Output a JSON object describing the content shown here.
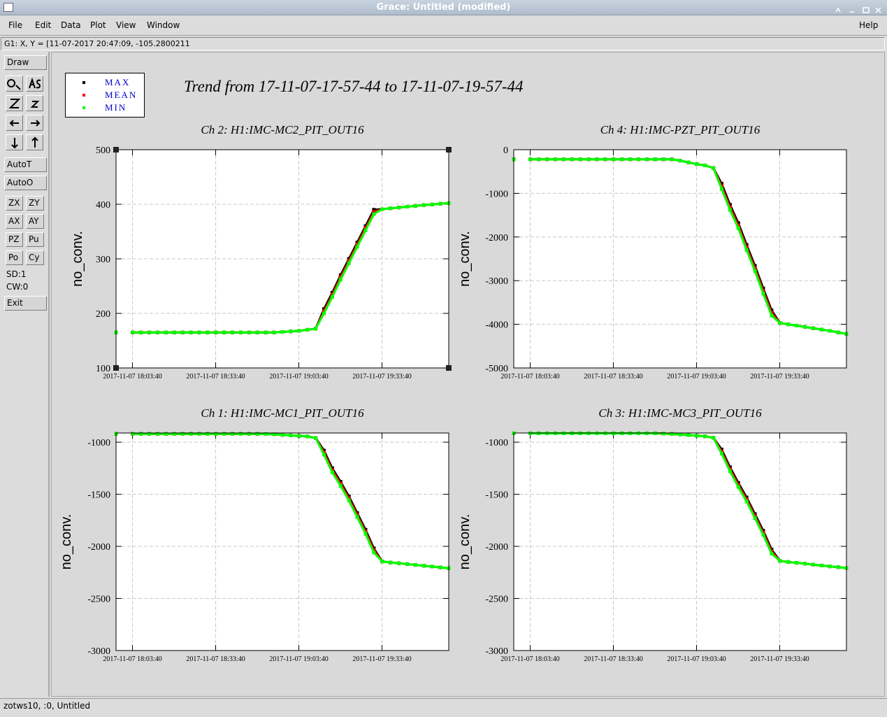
{
  "window": {
    "title": "Grace: Untitled (modified)"
  },
  "menu": {
    "items": [
      "File",
      "Edit",
      "Data",
      "Plot",
      "View",
      "Window"
    ],
    "help": "Help"
  },
  "status": "G1: X, Y = [11-07-2017 20:47:09, -105.2800211",
  "toolbar": {
    "draw": "Draw",
    "auto": [
      "AutoT",
      "AutoO"
    ],
    "buttons": [
      "ZX",
      "ZY",
      "AX",
      "AY",
      "PZ",
      "Pu",
      "Po",
      "Cy"
    ],
    "info": [
      "SD:1",
      "CW:0"
    ],
    "exit": "Exit"
  },
  "footer": "zotws10, :0, Untitled",
  "figure": {
    "title": "Trend from 17-11-07-17-57-44 to 17-11-07-19-57-44",
    "legend": [
      {
        "name": "MAX",
        "color": "#000000"
      },
      {
        "name": "MEAN",
        "color": "#ff0000"
      },
      {
        "name": "MIN",
        "color": "#00ff00"
      }
    ]
  },
  "chart_data": [
    {
      "type": "scatter",
      "title": "Ch 2: H1:IMC-MC2_PIT_OUT16",
      "y_label": "no_conv.",
      "x": [
        "2017-11-07 17:57:44",
        "2017-11-07 18:00:44",
        "2017-11-07 18:03:44",
        "2017-11-07 18:06:44",
        "2017-11-07 18:09:44",
        "2017-11-07 18:12:44",
        "2017-11-07 18:15:44",
        "2017-11-07 18:18:44",
        "2017-11-07 18:21:44",
        "2017-11-07 18:24:44",
        "2017-11-07 18:27:44",
        "2017-11-07 18:30:44",
        "2017-11-07 18:33:44",
        "2017-11-07 18:36:44",
        "2017-11-07 18:39:44",
        "2017-11-07 18:42:44",
        "2017-11-07 18:45:44",
        "2017-11-07 18:48:44",
        "2017-11-07 18:51:44",
        "2017-11-07 18:54:44",
        "2017-11-07 18:57:44",
        "2017-11-07 19:00:44",
        "2017-11-07 19:03:44",
        "2017-11-07 19:06:44",
        "2017-11-07 19:09:44",
        "2017-11-07 19:12:44",
        "2017-11-07 19:15:44",
        "2017-11-07 19:18:44",
        "2017-11-07 19:21:44",
        "2017-11-07 19:24:44",
        "2017-11-07 19:27:44",
        "2017-11-07 19:30:44",
        "2017-11-07 19:33:44",
        "2017-11-07 19:36:44",
        "2017-11-07 19:39:44",
        "2017-11-07 19:42:44",
        "2017-11-07 19:45:44",
        "2017-11-07 19:48:44",
        "2017-11-07 19:51:44",
        "2017-11-07 19:54:44",
        "2017-11-07 19:57:44"
      ],
      "xlim": [
        "2017-11-07 17:57:44",
        "2017-11-07 19:57:44"
      ],
      "xticks": [
        "2017-11-07 18:03:40",
        "2017-11-07 18:33:40",
        "2017-11-07 19:03:40",
        "2017-11-07 19:33:40"
      ],
      "ylim": [
        100,
        500
      ],
      "yticks": [
        100,
        200,
        300,
        400,
        500
      ],
      "grid": true,
      "series": [
        {
          "values": [
            165,
            null,
            165,
            165,
            165,
            165,
            165,
            165,
            165,
            165,
            165,
            165,
            165,
            165,
            165,
            165,
            165,
            165,
            165,
            165,
            166,
            167,
            168,
            170,
            172,
            208,
            238,
            270,
            300,
            330,
            360,
            390,
            391,
            392.5,
            394,
            395.5,
            397,
            398.5,
            399.5,
            401,
            402
          ]
        },
        {
          "values": [
            165,
            null,
            165,
            165,
            165,
            165,
            165,
            165,
            165,
            165,
            165,
            165,
            165,
            165,
            165,
            165,
            165,
            165,
            165,
            165,
            166,
            167,
            168,
            170,
            172,
            204,
            234,
            266,
            296,
            326,
            356,
            386,
            391,
            392.5,
            394,
            395.5,
            397,
            398.5,
            399.5,
            401,
            402
          ]
        },
        {
          "values": [
            165,
            null,
            165,
            165,
            165,
            165,
            165,
            165,
            165,
            165,
            165,
            165,
            165,
            165,
            165,
            165,
            165,
            165,
            165,
            165,
            166,
            167,
            168,
            170,
            172,
            200,
            230,
            262,
            292,
            322,
            352,
            382,
            391,
            392.5,
            394,
            395.5,
            397,
            398.5,
            399.5,
            401,
            402
          ]
        }
      ]
    },
    {
      "type": "scatter",
      "title": "Ch 4: H1:IMC-PZT_PIT_OUT16",
      "y_label": "no_conv.",
      "x": [
        "2017-11-07 17:57:44",
        "2017-11-07 18:00:44",
        "2017-11-07 18:03:44",
        "2017-11-07 18:06:44",
        "2017-11-07 18:09:44",
        "2017-11-07 18:12:44",
        "2017-11-07 18:15:44",
        "2017-11-07 18:18:44",
        "2017-11-07 18:21:44",
        "2017-11-07 18:24:44",
        "2017-11-07 18:27:44",
        "2017-11-07 18:30:44",
        "2017-11-07 18:33:44",
        "2017-11-07 18:36:44",
        "2017-11-07 18:39:44",
        "2017-11-07 18:42:44",
        "2017-11-07 18:45:44",
        "2017-11-07 18:48:44",
        "2017-11-07 18:51:44",
        "2017-11-07 18:54:44",
        "2017-11-07 18:57:44",
        "2017-11-07 19:00:44",
        "2017-11-07 19:03:44",
        "2017-11-07 19:06:44",
        "2017-11-07 19:09:44",
        "2017-11-07 19:12:44",
        "2017-11-07 19:15:44",
        "2017-11-07 19:18:44",
        "2017-11-07 19:21:44",
        "2017-11-07 19:24:44",
        "2017-11-07 19:27:44",
        "2017-11-07 19:30:44",
        "2017-11-07 19:33:44",
        "2017-11-07 19:36:44",
        "2017-11-07 19:39:44",
        "2017-11-07 19:42:44",
        "2017-11-07 19:45:44",
        "2017-11-07 19:48:44",
        "2017-11-07 19:51:44",
        "2017-11-07 19:54:44",
        "2017-11-07 19:57:44"
      ],
      "xlim": [
        "2017-11-07 17:57:44",
        "2017-11-07 19:57:44"
      ],
      "xticks": [
        "2017-11-07 18:03:40",
        "2017-11-07 18:33:40",
        "2017-11-07 19:03:40",
        "2017-11-07 19:33:40"
      ],
      "ylim": [
        -5000,
        0
      ],
      "yticks": [
        -5000,
        -4000,
        -3000,
        -2000,
        -1000,
        0
      ],
      "grid": true,
      "series": [
        {
          "values": [
            -220,
            null,
            -220,
            -220,
            -220,
            -220,
            -220,
            -220,
            -220,
            -220,
            -220,
            -220,
            -220,
            -220,
            -220,
            -220,
            -220,
            -220,
            -220,
            -220,
            -250,
            -290,
            -330,
            -360,
            -420,
            -780,
            -1260,
            -1680,
            -2180,
            -2660,
            -3180,
            -3680,
            -3970,
            -4000,
            -4030,
            -4060,
            -4090,
            -4120,
            -4150,
            -4185,
            -4220
          ]
        },
        {
          "values": [
            -220,
            null,
            -220,
            -220,
            -220,
            -220,
            -220,
            -220,
            -220,
            -220,
            -220,
            -220,
            -220,
            -220,
            -220,
            -220,
            -220,
            -220,
            -220,
            -220,
            -250,
            -290,
            -330,
            -360,
            -420,
            -840,
            -1320,
            -1740,
            -2240,
            -2720,
            -3240,
            -3740,
            -3970,
            -4000,
            -4030,
            -4060,
            -4090,
            -4120,
            -4150,
            -4185,
            -4220
          ]
        },
        {
          "values": [
            -220,
            null,
            -220,
            -220,
            -220,
            -220,
            -220,
            -220,
            -220,
            -220,
            -220,
            -220,
            -220,
            -220,
            -220,
            -220,
            -220,
            -220,
            -220,
            -220,
            -250,
            -290,
            -330,
            -360,
            -420,
            -900,
            -1380,
            -1800,
            -2300,
            -2780,
            -3300,
            -3800,
            -3970,
            -4000,
            -4030,
            -4060,
            -4090,
            -4120,
            -4150,
            -4185,
            -4220
          ]
        }
      ]
    },
    {
      "type": "scatter",
      "title": "Ch 1: H1:IMC-MC1_PIT_OUT16",
      "y_label": "no_conv.",
      "x": [
        "2017-11-07 17:57:44",
        "2017-11-07 18:00:44",
        "2017-11-07 18:03:44",
        "2017-11-07 18:06:44",
        "2017-11-07 18:09:44",
        "2017-11-07 18:12:44",
        "2017-11-07 18:15:44",
        "2017-11-07 18:18:44",
        "2017-11-07 18:21:44",
        "2017-11-07 18:24:44",
        "2017-11-07 18:27:44",
        "2017-11-07 18:30:44",
        "2017-11-07 18:33:44",
        "2017-11-07 18:36:44",
        "2017-11-07 18:39:44",
        "2017-11-07 18:42:44",
        "2017-11-07 18:45:44",
        "2017-11-07 18:48:44",
        "2017-11-07 18:51:44",
        "2017-11-07 18:54:44",
        "2017-11-07 18:57:44",
        "2017-11-07 19:00:44",
        "2017-11-07 19:03:44",
        "2017-11-07 19:06:44",
        "2017-11-07 19:09:44",
        "2017-11-07 19:12:44",
        "2017-11-07 19:15:44",
        "2017-11-07 19:18:44",
        "2017-11-07 19:21:44",
        "2017-11-07 19:24:44",
        "2017-11-07 19:27:44",
        "2017-11-07 19:30:44",
        "2017-11-07 19:33:44",
        "2017-11-07 19:36:44",
        "2017-11-07 19:39:44",
        "2017-11-07 19:42:44",
        "2017-11-07 19:45:44",
        "2017-11-07 19:48:44",
        "2017-11-07 19:51:44",
        "2017-11-07 19:54:44",
        "2017-11-07 19:57:44"
      ],
      "xlim": [
        "2017-11-07 17:57:44",
        "2017-11-07 19:57:44"
      ],
      "xticks": [
        "2017-11-07 18:03:40",
        "2017-11-07 18:33:40",
        "2017-11-07 19:03:40",
        "2017-11-07 19:33:40"
      ],
      "ylim": [
        -3000,
        -912
      ],
      "yticks": [
        -3000,
        -2500,
        -2000,
        -1500,
        -1000
      ],
      "grid": true,
      "series": [
        {
          "values": [
            -920,
            null,
            -920,
            -920,
            -920,
            -920,
            -920,
            -920,
            -920,
            -920,
            -920,
            -920,
            -920,
            -920,
            -920,
            -920,
            -920,
            -920,
            -922,
            -925,
            -930,
            -935,
            -940,
            -945,
            -960,
            -1080,
            -1250,
            -1380,
            -1520,
            -1680,
            -1840,
            -2020,
            -2145,
            -2155,
            -2162,
            -2170,
            -2178,
            -2186,
            -2194,
            -2202,
            -2210
          ]
        },
        {
          "values": [
            -920,
            null,
            -920,
            -920,
            -920,
            -920,
            -920,
            -920,
            -920,
            -920,
            -920,
            -920,
            -920,
            -920,
            -920,
            -920,
            -920,
            -920,
            -922,
            -925,
            -930,
            -935,
            -940,
            -945,
            -960,
            -1100,
            -1270,
            -1400,
            -1540,
            -1700,
            -1860,
            -2040,
            -2145,
            -2155,
            -2162,
            -2170,
            -2178,
            -2186,
            -2194,
            -2202,
            -2210
          ]
        },
        {
          "values": [
            -920,
            null,
            -920,
            -920,
            -920,
            -920,
            -920,
            -920,
            -920,
            -920,
            -920,
            -920,
            -920,
            -920,
            -920,
            -920,
            -920,
            -920,
            -922,
            -925,
            -930,
            -935,
            -940,
            -945,
            -960,
            -1120,
            -1290,
            -1420,
            -1560,
            -1720,
            -1880,
            -2060,
            -2145,
            -2155,
            -2162,
            -2170,
            -2178,
            -2186,
            -2194,
            -2202,
            -2210
          ]
        }
      ]
    },
    {
      "type": "scatter",
      "title": "Ch 3: H1:IMC-MC3_PIT_OUT16",
      "y_label": "no_conv.",
      "x": [
        "2017-11-07 17:57:44",
        "2017-11-07 18:00:44",
        "2017-11-07 18:03:44",
        "2017-11-07 18:06:44",
        "2017-11-07 18:09:44",
        "2017-11-07 18:12:44",
        "2017-11-07 18:15:44",
        "2017-11-07 18:18:44",
        "2017-11-07 18:21:44",
        "2017-11-07 18:24:44",
        "2017-11-07 18:27:44",
        "2017-11-07 18:30:44",
        "2017-11-07 18:33:44",
        "2017-11-07 18:36:44",
        "2017-11-07 18:39:44",
        "2017-11-07 18:42:44",
        "2017-11-07 18:45:44",
        "2017-11-07 18:48:44",
        "2017-11-07 18:51:44",
        "2017-11-07 18:54:44",
        "2017-11-07 18:57:44",
        "2017-11-07 19:00:44",
        "2017-11-07 19:03:44",
        "2017-11-07 19:06:44",
        "2017-11-07 19:09:44",
        "2017-11-07 19:12:44",
        "2017-11-07 19:15:44",
        "2017-11-07 19:18:44",
        "2017-11-07 19:21:44",
        "2017-11-07 19:24:44",
        "2017-11-07 19:27:44",
        "2017-11-07 19:30:44",
        "2017-11-07 19:33:44",
        "2017-11-07 19:36:44",
        "2017-11-07 19:39:44",
        "2017-11-07 19:42:44",
        "2017-11-07 19:45:44",
        "2017-11-07 19:48:44",
        "2017-11-07 19:51:44",
        "2017-11-07 19:54:44",
        "2017-11-07 19:57:44"
      ],
      "xlim": [
        "2017-11-07 17:57:44",
        "2017-11-07 19:57:44"
      ],
      "xticks": [
        "2017-11-07 18:03:40",
        "2017-11-07 18:33:40",
        "2017-11-07 19:03:40",
        "2017-11-07 19:33:40"
      ],
      "ylim": [
        -3000,
        -912
      ],
      "yticks": [
        -3000,
        -2500,
        -2000,
        -1500,
        -1000
      ],
      "grid": true,
      "series": [
        {
          "values": [
            -915,
            null,
            -915,
            -915,
            -915,
            -915,
            -915,
            -915,
            -915,
            -915,
            -915,
            -915,
            -915,
            -915,
            -915,
            -915,
            -915,
            -915,
            -918,
            -921,
            -926,
            -932,
            -938,
            -944,
            -958,
            -1070,
            -1240,
            -1390,
            -1530,
            -1690,
            -1850,
            -2030,
            -2140,
            -2150,
            -2158,
            -2166,
            -2175,
            -2184,
            -2192,
            -2200,
            -2208
          ]
        },
        {
          "values": [
            -915,
            null,
            -915,
            -915,
            -915,
            -915,
            -915,
            -915,
            -915,
            -915,
            -915,
            -915,
            -915,
            -915,
            -915,
            -915,
            -915,
            -915,
            -918,
            -921,
            -926,
            -932,
            -938,
            -944,
            -958,
            -1090,
            -1260,
            -1410,
            -1550,
            -1710,
            -1870,
            -2050,
            -2140,
            -2150,
            -2158,
            -2166,
            -2175,
            -2184,
            -2192,
            -2200,
            -2208
          ]
        },
        {
          "values": [
            -915,
            null,
            -915,
            -915,
            -915,
            -915,
            -915,
            -915,
            -915,
            -915,
            -915,
            -915,
            -915,
            -915,
            -915,
            -915,
            -915,
            -915,
            -918,
            -921,
            -926,
            -932,
            -938,
            -944,
            -958,
            -1110,
            -1280,
            -1430,
            -1570,
            -1730,
            -1890,
            -2070,
            -2140,
            -2150,
            -2158,
            -2166,
            -2175,
            -2184,
            -2192,
            -2200,
            -2208
          ]
        }
      ]
    }
  ]
}
